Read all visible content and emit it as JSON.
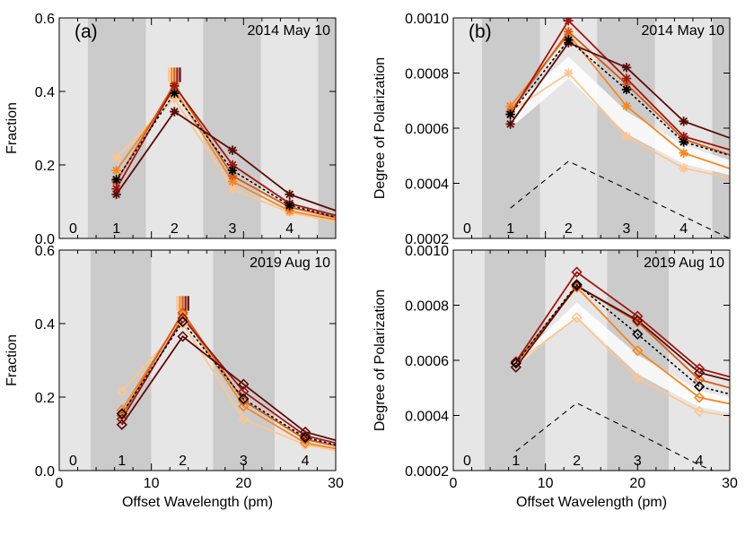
{
  "colors": {
    "band_dark": "#cbcbcb",
    "band_light": "#e6e6e6",
    "band_white": "#ffffff",
    "c1": "#fdc68e",
    "c2": "#f6861f",
    "c3": "#d75a10",
    "c4": "#a2140e",
    "c5": "#5c0c08",
    "avg": "#000000",
    "err": "#8c1a14",
    "dash": "#000000"
  },
  "chart_data": [
    {
      "type": "line",
      "panel_label": "(a)",
      "date": "2014 May 10",
      "ylabel": "Fraction",
      "xlabel": "",
      "xlim": [
        0,
        30
      ],
      "ylim": [
        0,
        0.6
      ],
      "yticks": [
        "0.0",
        "0.2",
        "0.4",
        "0.6"
      ],
      "xticks": [],
      "band_labels": [
        "0",
        "1",
        "2",
        "3",
        "4"
      ],
      "band_label_x": [
        1.5,
        6.2,
        12.5,
        18.8,
        25.0
      ],
      "bands": [
        [
          0,
          3.1,
          "light"
        ],
        [
          3.1,
          9.4,
          "dark"
        ],
        [
          9.4,
          15.6,
          "light"
        ],
        [
          15.6,
          21.9,
          "dark"
        ],
        [
          21.9,
          28.1,
          "light"
        ],
        [
          28.1,
          30,
          "dark"
        ]
      ],
      "marker": "asterisk",
      "series": [
        {
          "color": "c1",
          "x": [
            6.2,
            12.5,
            18.8,
            25.0,
            31.2
          ],
          "y": [
            0.22,
            0.38,
            0.135,
            0.07,
            0.04
          ]
        },
        {
          "color": "c2",
          "x": [
            6.2,
            12.5,
            18.8,
            25.0,
            31.2
          ],
          "y": [
            0.185,
            0.405,
            0.155,
            0.075,
            0.045
          ]
        },
        {
          "color": "c3",
          "x": [
            6.2,
            12.5,
            18.8,
            25.0,
            31.2
          ],
          "y": [
            0.155,
            0.42,
            0.17,
            0.085,
            0.05
          ]
        },
        {
          "color": "c4",
          "x": [
            6.2,
            12.5,
            18.8,
            25.0,
            31.2
          ],
          "y": [
            0.135,
            0.415,
            0.2,
            0.095,
            0.055
          ]
        },
        {
          "color": "c5",
          "x": [
            6.2,
            12.5,
            18.8,
            25.0,
            31.2
          ],
          "y": [
            0.12,
            0.345,
            0.24,
            0.12,
            0.065
          ]
        }
      ],
      "average": {
        "x": [
          6.2,
          12.5,
          18.8,
          25.0,
          31.2
        ],
        "y": [
          0.16,
          0.395,
          0.185,
          0.09,
          0.05
        ]
      },
      "err_bars": {
        "x": [
          11.9,
          12.2,
          12.5,
          12.8,
          13.1
        ],
        "colors": [
          "c1",
          "c2",
          "c3",
          "c4",
          "c5"
        ],
        "lo": 0.425,
        "hi": 0.465
      }
    },
    {
      "type": "line",
      "panel_label": "(b)",
      "date": "2014 May 10",
      "ylabel": "Degree of Polarization",
      "xlabel": "",
      "xlim": [
        0,
        30
      ],
      "ylim": [
        0.0002,
        0.001
      ],
      "yticks": [
        "0.0002",
        "0.0004",
        "0.0006",
        "0.0008",
        "0.0010"
      ],
      "xticks": [],
      "band_labels": [
        "0",
        "1",
        "2",
        "3",
        "4"
      ],
      "band_label_x": [
        1.5,
        6.2,
        12.5,
        18.8,
        25.0
      ],
      "bands": [
        [
          0,
          3.1,
          "light"
        ],
        [
          3.1,
          9.4,
          "dark"
        ],
        [
          9.4,
          15.6,
          "light"
        ],
        [
          15.6,
          21.9,
          "dark"
        ],
        [
          21.9,
          28.1,
          "light"
        ],
        [
          28.1,
          30,
          "dark"
        ]
      ],
      "marker": "asterisk",
      "series": [
        {
          "color": "c1",
          "x": [
            6.2,
            12.5,
            18.8,
            25.0,
            31.2
          ],
          "y": [
            0.00066,
            0.0008,
            0.00057,
            0.000455,
            0.00041
          ]
        },
        {
          "color": "c2",
          "x": [
            6.2,
            12.5,
            18.8,
            25.0,
            31.2
          ],
          "y": [
            0.00068,
            0.00094,
            0.00068,
            0.00051,
            0.00044
          ]
        },
        {
          "color": "c3",
          "x": [
            6.2,
            12.5,
            18.8,
            25.0,
            31.2
          ],
          "y": [
            0.00066,
            0.00095,
            0.00076,
            0.00056,
            0.00049
          ]
        },
        {
          "color": "c4",
          "x": [
            6.2,
            12.5,
            18.8,
            25.0,
            31.2
          ],
          "y": [
            0.00065,
            0.00099,
            0.00078,
            0.00057,
            0.00051
          ]
        },
        {
          "color": "c5",
          "x": [
            6.2,
            12.5,
            18.8,
            25.0,
            31.2
          ],
          "y": [
            0.000615,
            0.00091,
            0.00082,
            0.000625,
            0.00055
          ]
        }
      ],
      "average": {
        "x": [
          6.2,
          12.5,
          18.8,
          25.0,
          31.2
        ],
        "y": [
          0.00065,
          0.00092,
          0.00074,
          0.00055,
          0.00049
        ]
      },
      "envelope": {
        "x": [
          6.2,
          12.5,
          18.8,
          25.0,
          31.2
        ],
        "lo": [
          0.0006,
          0.00078,
          0.00058,
          0.00047,
          0.00042
        ],
        "hi": [
          0.00067,
          0.00086,
          0.00066,
          0.00054,
          0.00047
        ]
      },
      "dashed": {
        "x": [
          6.2,
          12.5,
          18.8,
          25.0,
          31.2
        ],
        "y": [
          0.00031,
          0.00048,
          0.00038,
          0.00028,
          0.00018
        ]
      }
    },
    {
      "type": "line",
      "panel_label": "",
      "date": "2019 Aug 10",
      "ylabel": "Fraction",
      "xlabel": "Offset Wavelength (pm)",
      "xlim": [
        0,
        30
      ],
      "ylim": [
        0,
        0.6
      ],
      "yticks": [
        "0.0",
        "0.2",
        "0.4",
        "0.6"
      ],
      "xticks": [
        "0",
        "10",
        "20",
        "30"
      ],
      "band_labels": [
        "0",
        "1",
        "2",
        "3",
        "4"
      ],
      "band_label_x": [
        1.5,
        6.8,
        13.4,
        20.0,
        26.7
      ],
      "bands": [
        [
          0,
          3.4,
          "light"
        ],
        [
          3.4,
          10.0,
          "dark"
        ],
        [
          10.0,
          16.7,
          "light"
        ],
        [
          16.7,
          23.4,
          "dark"
        ],
        [
          23.4,
          30,
          "light"
        ]
      ],
      "marker": "diamond",
      "series": [
        {
          "color": "c1",
          "x": [
            6.8,
            13.4,
            20.0,
            26.7,
            33.3
          ],
          "y": [
            0.215,
            0.4,
            0.14,
            0.07,
            0.04
          ]
        },
        {
          "color": "c2",
          "x": [
            6.8,
            13.4,
            20.0,
            26.7,
            33.3
          ],
          "y": [
            0.165,
            0.425,
            0.175,
            0.075,
            0.045
          ]
        },
        {
          "color": "c3",
          "x": [
            6.8,
            13.4,
            20.0,
            26.7,
            33.3
          ],
          "y": [
            0.15,
            0.43,
            0.19,
            0.085,
            0.05
          ]
        },
        {
          "color": "c4",
          "x": [
            6.8,
            13.4,
            20.0,
            26.7,
            33.3
          ],
          "y": [
            0.14,
            0.415,
            0.215,
            0.095,
            0.055
          ]
        },
        {
          "color": "c5",
          "x": [
            6.8,
            13.4,
            20.0,
            26.7,
            33.3
          ],
          "y": [
            0.125,
            0.365,
            0.235,
            0.105,
            0.06
          ]
        }
      ],
      "average": {
        "x": [
          6.8,
          13.4,
          20.0,
          26.7,
          33.3
        ],
        "y": [
          0.155,
          0.405,
          0.195,
          0.09,
          0.05
        ]
      },
      "err_bars": {
        "x": [
          12.8,
          13.1,
          13.4,
          13.7,
          14.0
        ],
        "colors": [
          "c1",
          "c2",
          "c3",
          "c4",
          "c5"
        ],
        "lo": 0.435,
        "hi": 0.475
      }
    },
    {
      "type": "line",
      "panel_label": "",
      "date": "2019 Aug 10",
      "ylabel": "Degree of Polarization",
      "xlabel": "Offset Wavelength (pm)",
      "xlim": [
        0,
        30
      ],
      "ylim": [
        0.0002,
        0.001
      ],
      "yticks": [
        "0.0002",
        "0.0004",
        "0.0006",
        "0.0008",
        "0.0010"
      ],
      "xticks": [
        "0",
        "10",
        "20",
        "30"
      ],
      "band_labels": [
        "0",
        "1",
        "2",
        "3",
        "4"
      ],
      "band_label_x": [
        1.5,
        6.8,
        13.4,
        20.0,
        26.7
      ],
      "bands": [
        [
          0,
          3.4,
          "light"
        ],
        [
          3.4,
          10.0,
          "dark"
        ],
        [
          10.0,
          16.7,
          "light"
        ],
        [
          16.7,
          23.4,
          "dark"
        ],
        [
          23.4,
          30,
          "light"
        ]
      ],
      "marker": "diamond",
      "series": [
        {
          "color": "c1",
          "x": [
            6.8,
            13.4,
            20.0,
            26.7,
            33.3
          ],
          "y": [
            0.00059,
            0.000755,
            0.000535,
            0.000415,
            0.00038
          ]
        },
        {
          "color": "c2",
          "x": [
            6.8,
            13.4,
            20.0,
            26.7,
            33.3
          ],
          "y": [
            0.00059,
            0.000865,
            0.000635,
            0.000465,
            0.00042
          ]
        },
        {
          "color": "c3",
          "x": [
            6.8,
            13.4,
            20.0,
            26.7,
            33.3
          ],
          "y": [
            0.00059,
            0.00087,
            0.00074,
            0.00053,
            0.00047
          ]
        },
        {
          "color": "c4",
          "x": [
            6.8,
            13.4,
            20.0,
            26.7,
            33.3
          ],
          "y": [
            0.000595,
            0.00092,
            0.00076,
            0.00057,
            0.00051
          ]
        },
        {
          "color": "c5",
          "x": [
            6.8,
            13.4,
            20.0,
            26.7,
            33.3
          ],
          "y": [
            0.000575,
            0.00087,
            0.000745,
            0.000555,
            0.0005
          ]
        }
      ],
      "average": {
        "x": [
          6.8,
          13.4,
          20.0,
          26.7,
          33.3
        ],
        "y": [
          0.00059,
          0.000875,
          0.000695,
          0.000505,
          0.00045
        ]
      },
      "envelope": {
        "x": [
          6.8,
          13.4,
          20.0,
          26.7,
          33.3
        ],
        "lo": [
          0.00058,
          0.00076,
          0.00055,
          0.00043,
          0.00039
        ],
        "hi": [
          0.0006,
          0.00081,
          0.00062,
          0.00049,
          0.00044
        ]
      },
      "dashed": {
        "x": [
          6.8,
          13.4,
          20.0,
          26.7,
          33.3
        ],
        "y": [
          0.00027,
          0.000445,
          0.000335,
          0.00022,
          0.00013
        ]
      }
    }
  ]
}
